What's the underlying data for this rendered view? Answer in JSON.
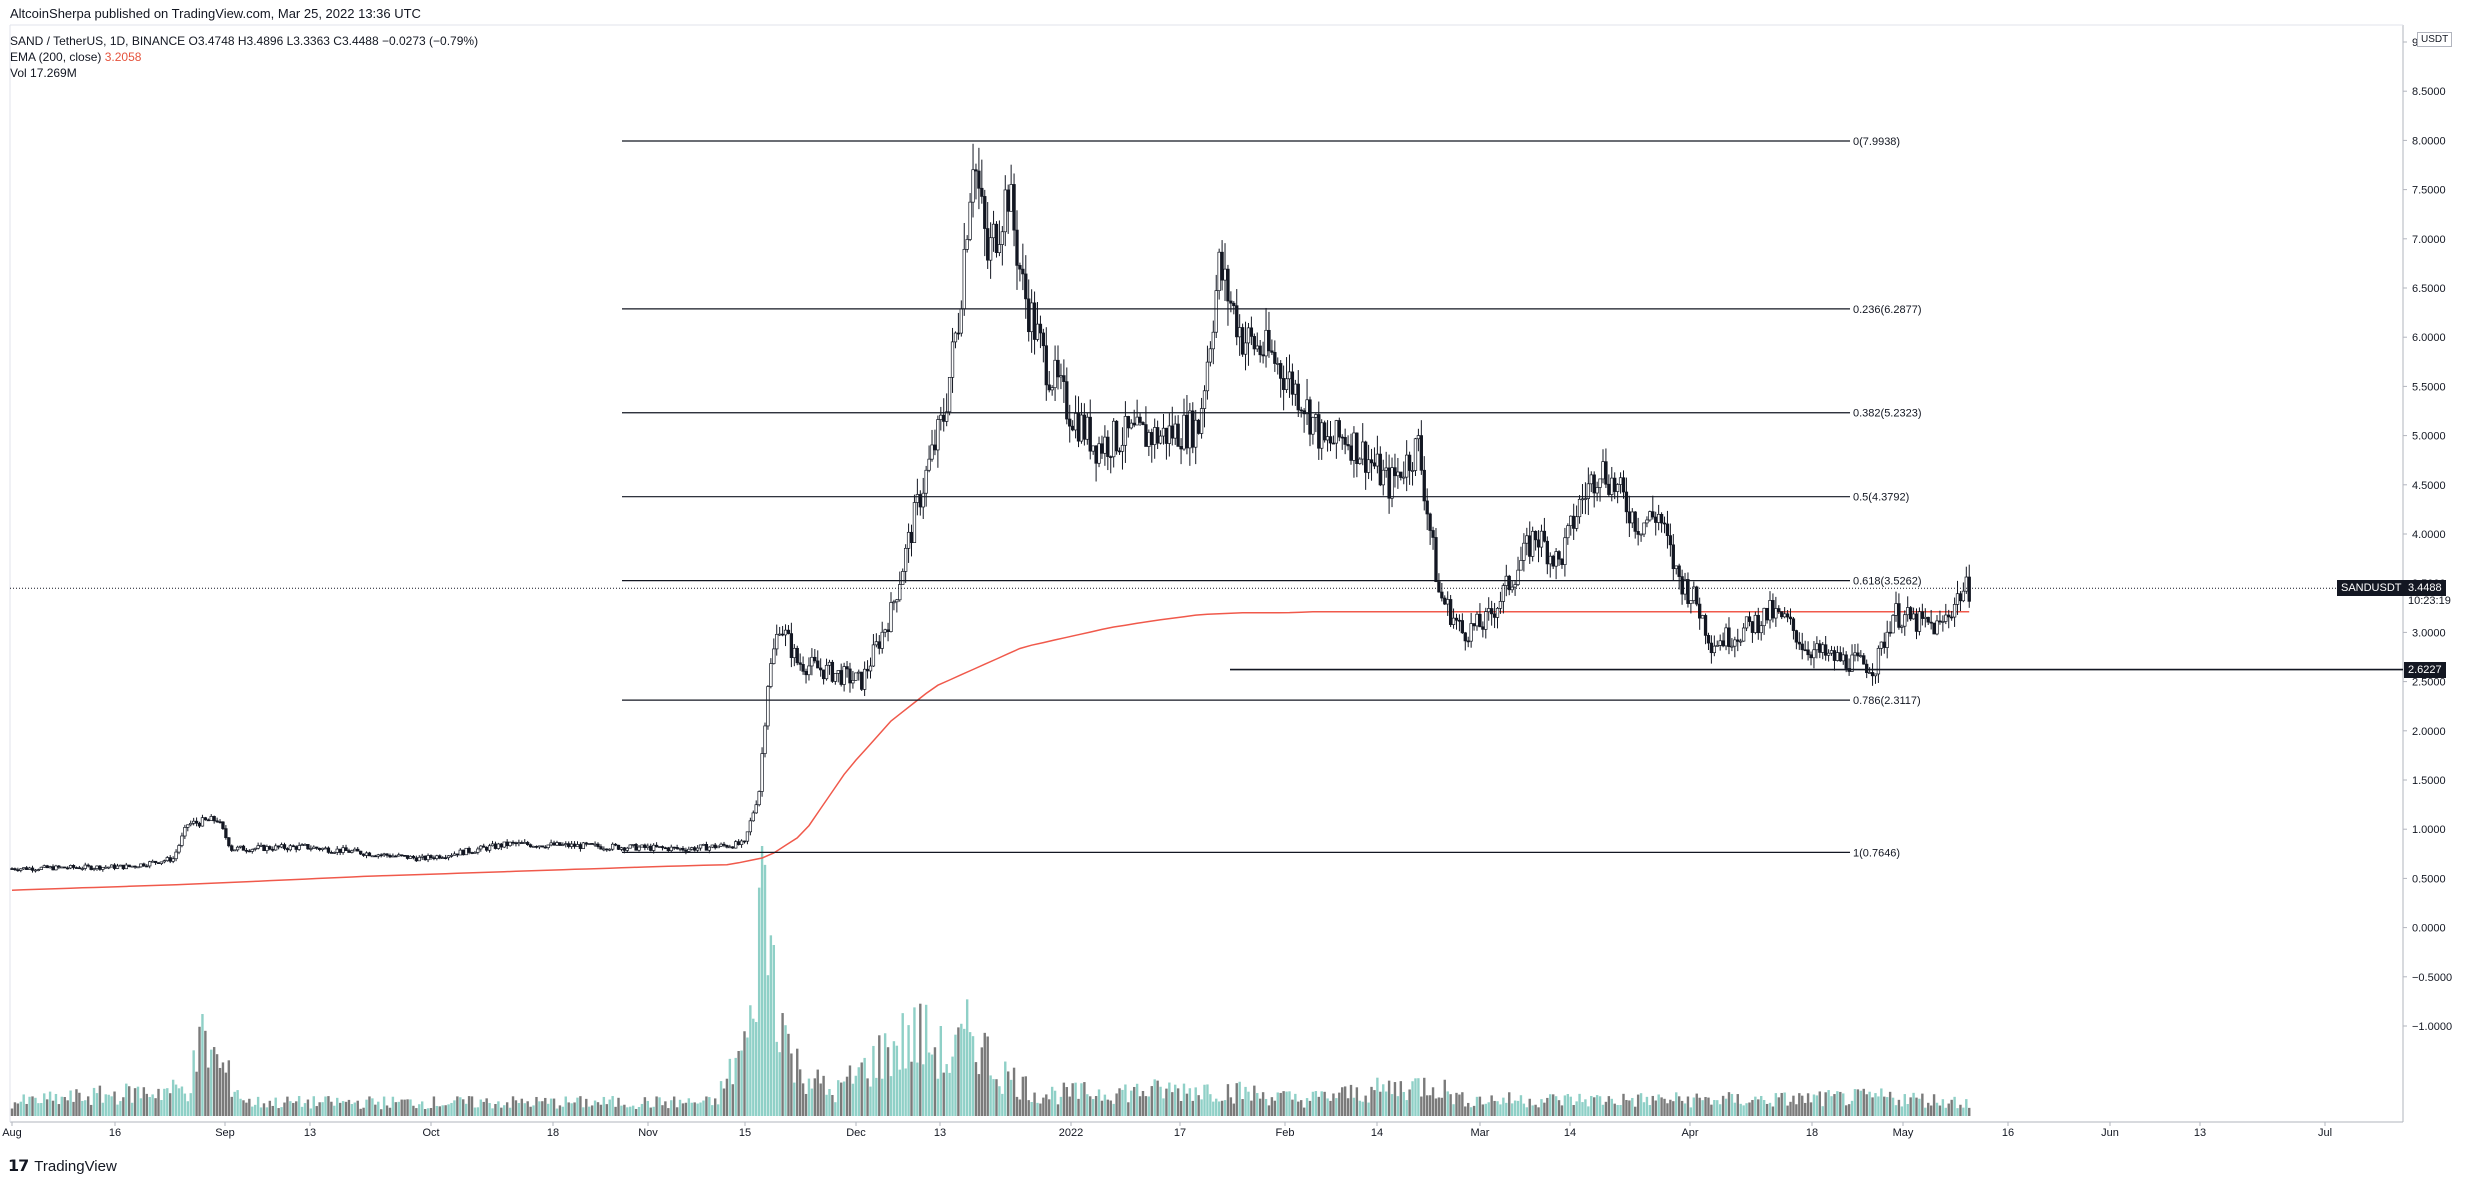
{
  "attribution": "AltcoinSherpa published on TradingView.com, Mar 25, 2022 13:36 UTC",
  "legend": {
    "symbol_line": "SAND / TetherUS, 1D, BINANCE  O3.4748  H3.4896  L3.3363  C3.4488  −0.0273 (−0.79%)",
    "ema_label": "EMA (200, close)",
    "ema_value": "3.2058",
    "vol_label": "Vol",
    "vol_value": "17.269M"
  },
  "currency": "USDT",
  "symbol_tag": "SANDUSDT",
  "current_price": "3.4488",
  "countdown": "10:23:19",
  "support_price": "2.6227",
  "footer_brand": "TradingView",
  "colors": {
    "up": "#ffffff",
    "down": "#131722",
    "ema": "#f0594b",
    "vol_up": "#8fd0c7",
    "vol_down": "#7a7a7a",
    "fib_line": "#131722"
  },
  "chart_data": {
    "type": "candlestick",
    "y_axis_ticks": [
      "9.0000",
      "8.5000",
      "8.0000",
      "7.5000",
      "7.0000",
      "6.5000",
      "6.0000",
      "5.5000",
      "5.0000",
      "4.5000",
      "4.0000",
      "3.5000",
      "3.0000",
      "2.5000",
      "2.0000",
      "1.5000",
      "1.0000",
      "0.5000",
      "0.0000",
      "−0.5000",
      "−1.0000"
    ],
    "x_axis_ticks": [
      "Aug",
      "16",
      "Sep",
      "13",
      "Oct",
      "18",
      "Nov",
      "15",
      "Dec",
      "13",
      "2022",
      "17",
      "Feb",
      "14",
      "Mar",
      "14",
      "Apr",
      "18",
      "May",
      "16",
      "Jun",
      "13",
      "Jul"
    ],
    "fib_levels": [
      {
        "label": "0(7.9938)",
        "price": 7.9938
      },
      {
        "label": "0.236(6.2877)",
        "price": 6.2877
      },
      {
        "label": "0.382(5.2323)",
        "price": 5.2323
      },
      {
        "label": "0.5(4.3792)",
        "price": 4.3792
      },
      {
        "label": "0.618(3.5262)",
        "price": 3.5262
      },
      {
        "label": "0.786(2.3117)",
        "price": 2.3117
      },
      {
        "label": "1(0.7646)",
        "price": 0.7646
      }
    ],
    "support_level": 2.6227,
    "current_price": 3.4488,
    "ema_points": [
      [
        0,
        0.38
      ],
      [
        60,
        0.44
      ],
      [
        120,
        0.52
      ],
      [
        180,
        0.58
      ],
      [
        220,
        0.62
      ],
      [
        245,
        0.64
      ],
      [
        258,
        0.72
      ],
      [
        270,
        0.95
      ],
      [
        285,
        1.6
      ],
      [
        300,
        2.1
      ],
      [
        315,
        2.45
      ],
      [
        330,
        2.65
      ],
      [
        345,
        2.85
      ],
      [
        360,
        2.95
      ],
      [
        375,
        3.05
      ],
      [
        390,
        3.12
      ],
      [
        405,
        3.18
      ],
      [
        420,
        3.2
      ],
      [
        435,
        3.2
      ],
      [
        445,
        3.21
      ]
    ],
    "price_anchors": [
      [
        0,
        0.6
      ],
      [
        40,
        0.62
      ],
      [
        55,
        0.7
      ],
      [
        60,
        1.05
      ],
      [
        70,
        1.1
      ],
      [
        75,
        0.8
      ],
      [
        100,
        0.82
      ],
      [
        140,
        0.7
      ],
      [
        170,
        0.85
      ],
      [
        230,
        0.8
      ],
      [
        250,
        0.85
      ],
      [
        255,
        1.4
      ],
      [
        258,
        2.5
      ],
      [
        262,
        3.1
      ],
      [
        268,
        2.7
      ],
      [
        290,
        2.5
      ],
      [
        300,
        3.2
      ],
      [
        310,
        4.4
      ],
      [
        318,
        5.2
      ],
      [
        323,
        6.2
      ],
      [
        328,
        7.9
      ],
      [
        333,
        6.8
      ],
      [
        340,
        7.5
      ],
      [
        345,
        6.5
      ],
      [
        352,
        5.8
      ],
      [
        360,
        5.3
      ],
      [
        370,
        4.9
      ],
      [
        380,
        5.0
      ],
      [
        392,
        5.0
      ],
      [
        405,
        5.1
      ],
      [
        412,
        6.7
      ],
      [
        420,
        6.0
      ],
      [
        430,
        5.8
      ],
      [
        440,
        5.4
      ],
      [
        448,
        4.9
      ],
      [
        455,
        5.0
      ],
      [
        462,
        4.8
      ],
      [
        470,
        4.5
      ],
      [
        480,
        4.9
      ],
      [
        487,
        3.4
      ],
      [
        495,
        3.0
      ],
      [
        503,
        3.1
      ],
      [
        511,
        3.5
      ],
      [
        520,
        4.0
      ],
      [
        528,
        3.7
      ],
      [
        535,
        4.3
      ],
      [
        542,
        4.7
      ],
      [
        549,
        4.4
      ],
      [
        555,
        4.1
      ],
      [
        562,
        4.2
      ],
      [
        568,
        3.6
      ],
      [
        575,
        3.3
      ],
      [
        580,
        2.9
      ],
      [
        590,
        3.0
      ],
      [
        600,
        3.2
      ],
      [
        606,
        3.1
      ],
      [
        612,
        2.85
      ],
      [
        620,
        2.75
      ],
      [
        628,
        2.7
      ],
      [
        636,
        2.65
      ],
      [
        642,
        3.2
      ],
      [
        650,
        3.1
      ],
      [
        658,
        3.05
      ],
      [
        665,
        3.4
      ],
      [
        668,
        3.45
      ]
    ],
    "volume_anchors": [
      [
        0,
        0.05
      ],
      [
        60,
        0.1
      ],
      [
        65,
        0.28
      ],
      [
        70,
        0.2
      ],
      [
        80,
        0.05
      ],
      [
        240,
        0.05
      ],
      [
        252,
        0.3
      ],
      [
        256,
        0.9
      ],
      [
        260,
        0.55
      ],
      [
        266,
        0.2
      ],
      [
        280,
        0.08
      ],
      [
        300,
        0.25
      ],
      [
        310,
        0.3
      ],
      [
        320,
        0.2
      ],
      [
        328,
        0.32
      ],
      [
        335,
        0.18
      ],
      [
        350,
        0.08
      ],
      [
        410,
        0.1
      ],
      [
        440,
        0.06
      ],
      [
        485,
        0.12
      ],
      [
        495,
        0.06
      ],
      [
        600,
        0.06
      ],
      [
        640,
        0.07
      ],
      [
        668,
        0.05
      ]
    ]
  }
}
